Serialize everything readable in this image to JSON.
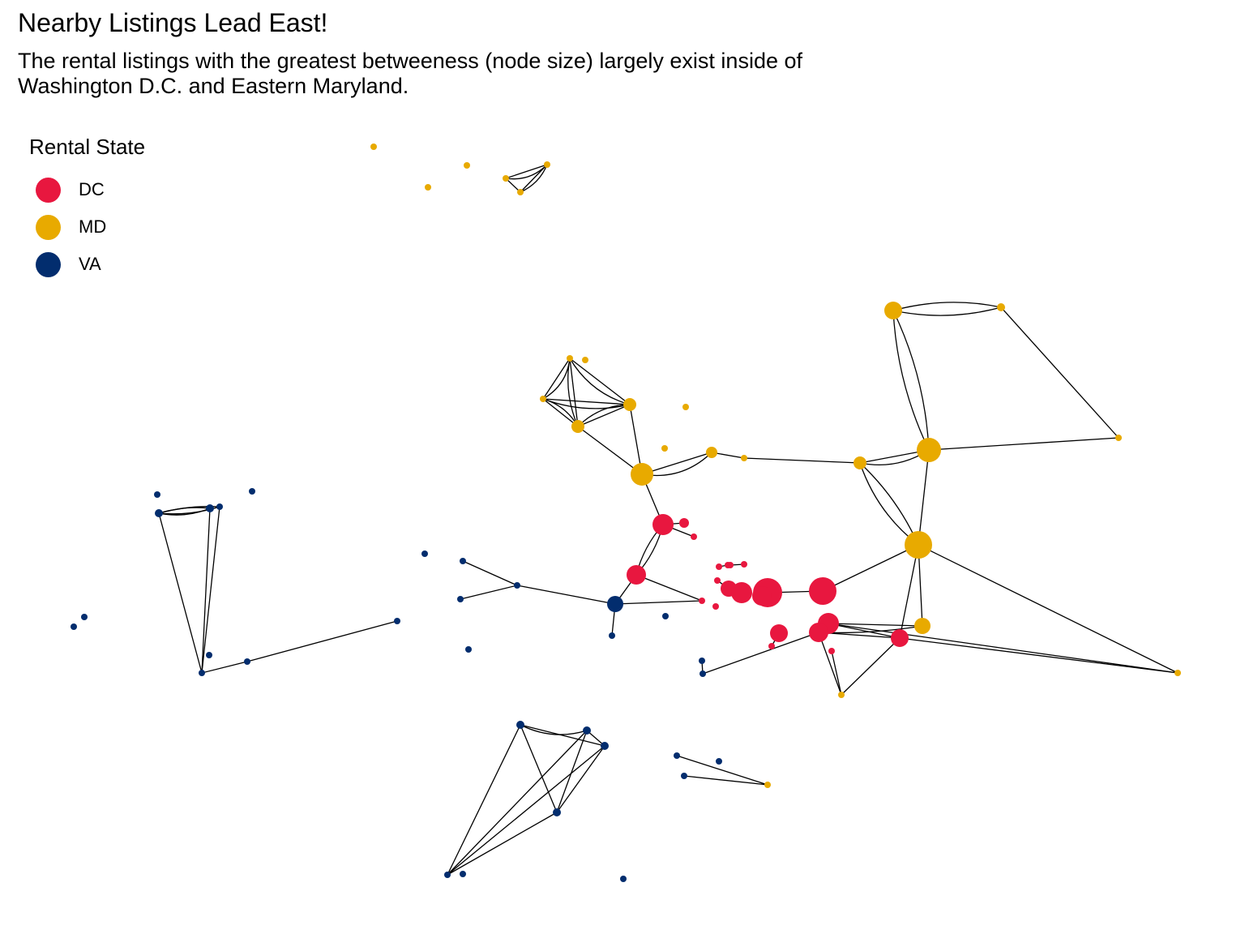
{
  "title": "Nearby Listings Lead East!",
  "subtitle_lines": [
    "The rental listings with the greatest betweeness (node size) largely exist inside of",
    "Washington D.C. and Eastern Maryland."
  ],
  "legend": {
    "title": "Rental State",
    "items": [
      {
        "label": "DC",
        "color": "#E8173F"
      },
      {
        "label": "MD",
        "color": "#E8AA00"
      },
      {
        "label": "VA",
        "color": "#022D6E"
      }
    ]
  },
  "chart_data": {
    "type": "network",
    "note_size": "node size = betweenness",
    "states": {
      "DC": "#E8173F",
      "MD": "#E8AA00",
      "VA": "#022D6E"
    }
  }
}
